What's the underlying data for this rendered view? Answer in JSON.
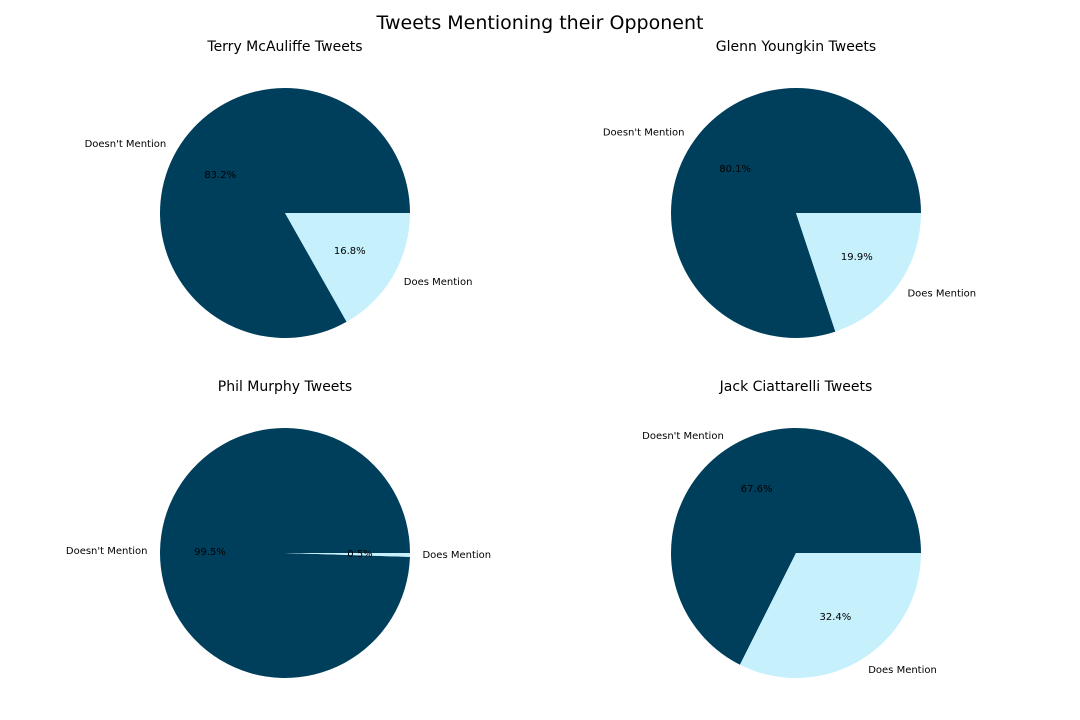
{
  "figure": {
    "title": "Tweets Mentioning their Opponent"
  },
  "colors": {
    "doesnt_mention": "#003f5c",
    "does_mention": "#c5f0fc"
  },
  "chart_data": [
    {
      "type": "pie",
      "title": "Terry McAuliffe Tweets",
      "labels": [
        "Doesn't Mention",
        "Does Mention"
      ],
      "values": [
        83.2,
        16.8
      ],
      "percent_labels": [
        "83.2%",
        "16.8%"
      ],
      "colors": [
        "#003f5c",
        "#c5f0fc"
      ]
    },
    {
      "type": "pie",
      "title": "Glenn Youngkin Tweets",
      "labels": [
        "Doesn't Mention",
        "Does Mention"
      ],
      "values": [
        80.1,
        19.9
      ],
      "percent_labels": [
        "80.1%",
        "19.9%"
      ],
      "colors": [
        "#003f5c",
        "#c5f0fc"
      ]
    },
    {
      "type": "pie",
      "title": "Phil Murphy Tweets",
      "labels": [
        "Doesn't Mention",
        "Does Mention"
      ],
      "values": [
        99.5,
        0.5
      ],
      "percent_labels": [
        "99.5%",
        "0.5%"
      ],
      "colors": [
        "#003f5c",
        "#c5f0fc"
      ]
    },
    {
      "type": "pie",
      "title": "Jack Ciattarelli Tweets",
      "labels": [
        "Doesn't Mention",
        "Does Mention"
      ],
      "values": [
        67.6,
        32.4
      ],
      "percent_labels": [
        "67.6%",
        "32.4%"
      ],
      "colors": [
        "#003f5c",
        "#c5f0fc"
      ]
    }
  ]
}
